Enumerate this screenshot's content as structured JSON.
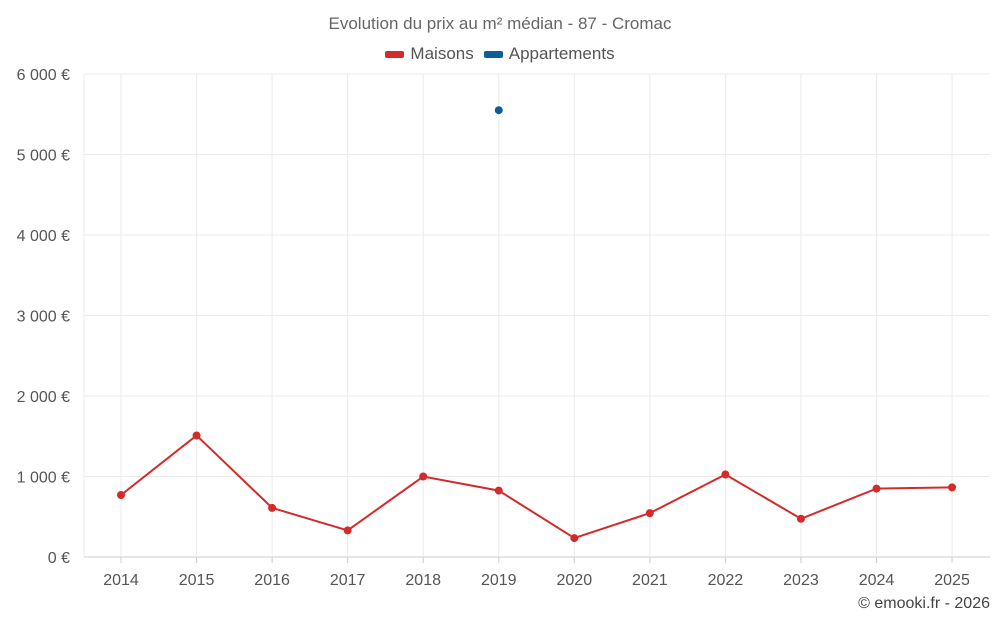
{
  "chart_data": {
    "type": "line",
    "title": "Evolution du prix au m² médian - 87 - Cromac",
    "categories": [
      "2014",
      "2015",
      "2016",
      "2017",
      "2018",
      "2019",
      "2020",
      "2021",
      "2022",
      "2023",
      "2024",
      "2025"
    ],
    "y_ticks": [
      0,
      1000,
      2000,
      3000,
      4000,
      5000,
      6000
    ],
    "y_tick_labels": [
      "0 €",
      "1 000 €",
      "2 000 €",
      "3 000 €",
      "4 000 €",
      "5 000 €",
      "6 000 €"
    ],
    "ylim": [
      0,
      6000
    ],
    "grid": true,
    "legend_position": "top-center",
    "series": [
      {
        "name": "Maisons",
        "color": "#d42a2a",
        "values": [
          770,
          1510,
          610,
          330,
          1000,
          825,
          235,
          545,
          1025,
          475,
          850,
          865
        ]
      },
      {
        "name": "Appartements",
        "color": "#0b5f96",
        "values": [
          null,
          null,
          null,
          null,
          null,
          5550,
          null,
          null,
          null,
          null,
          null,
          null
        ]
      }
    ]
  },
  "credit": "© emooki.fr - 2026"
}
